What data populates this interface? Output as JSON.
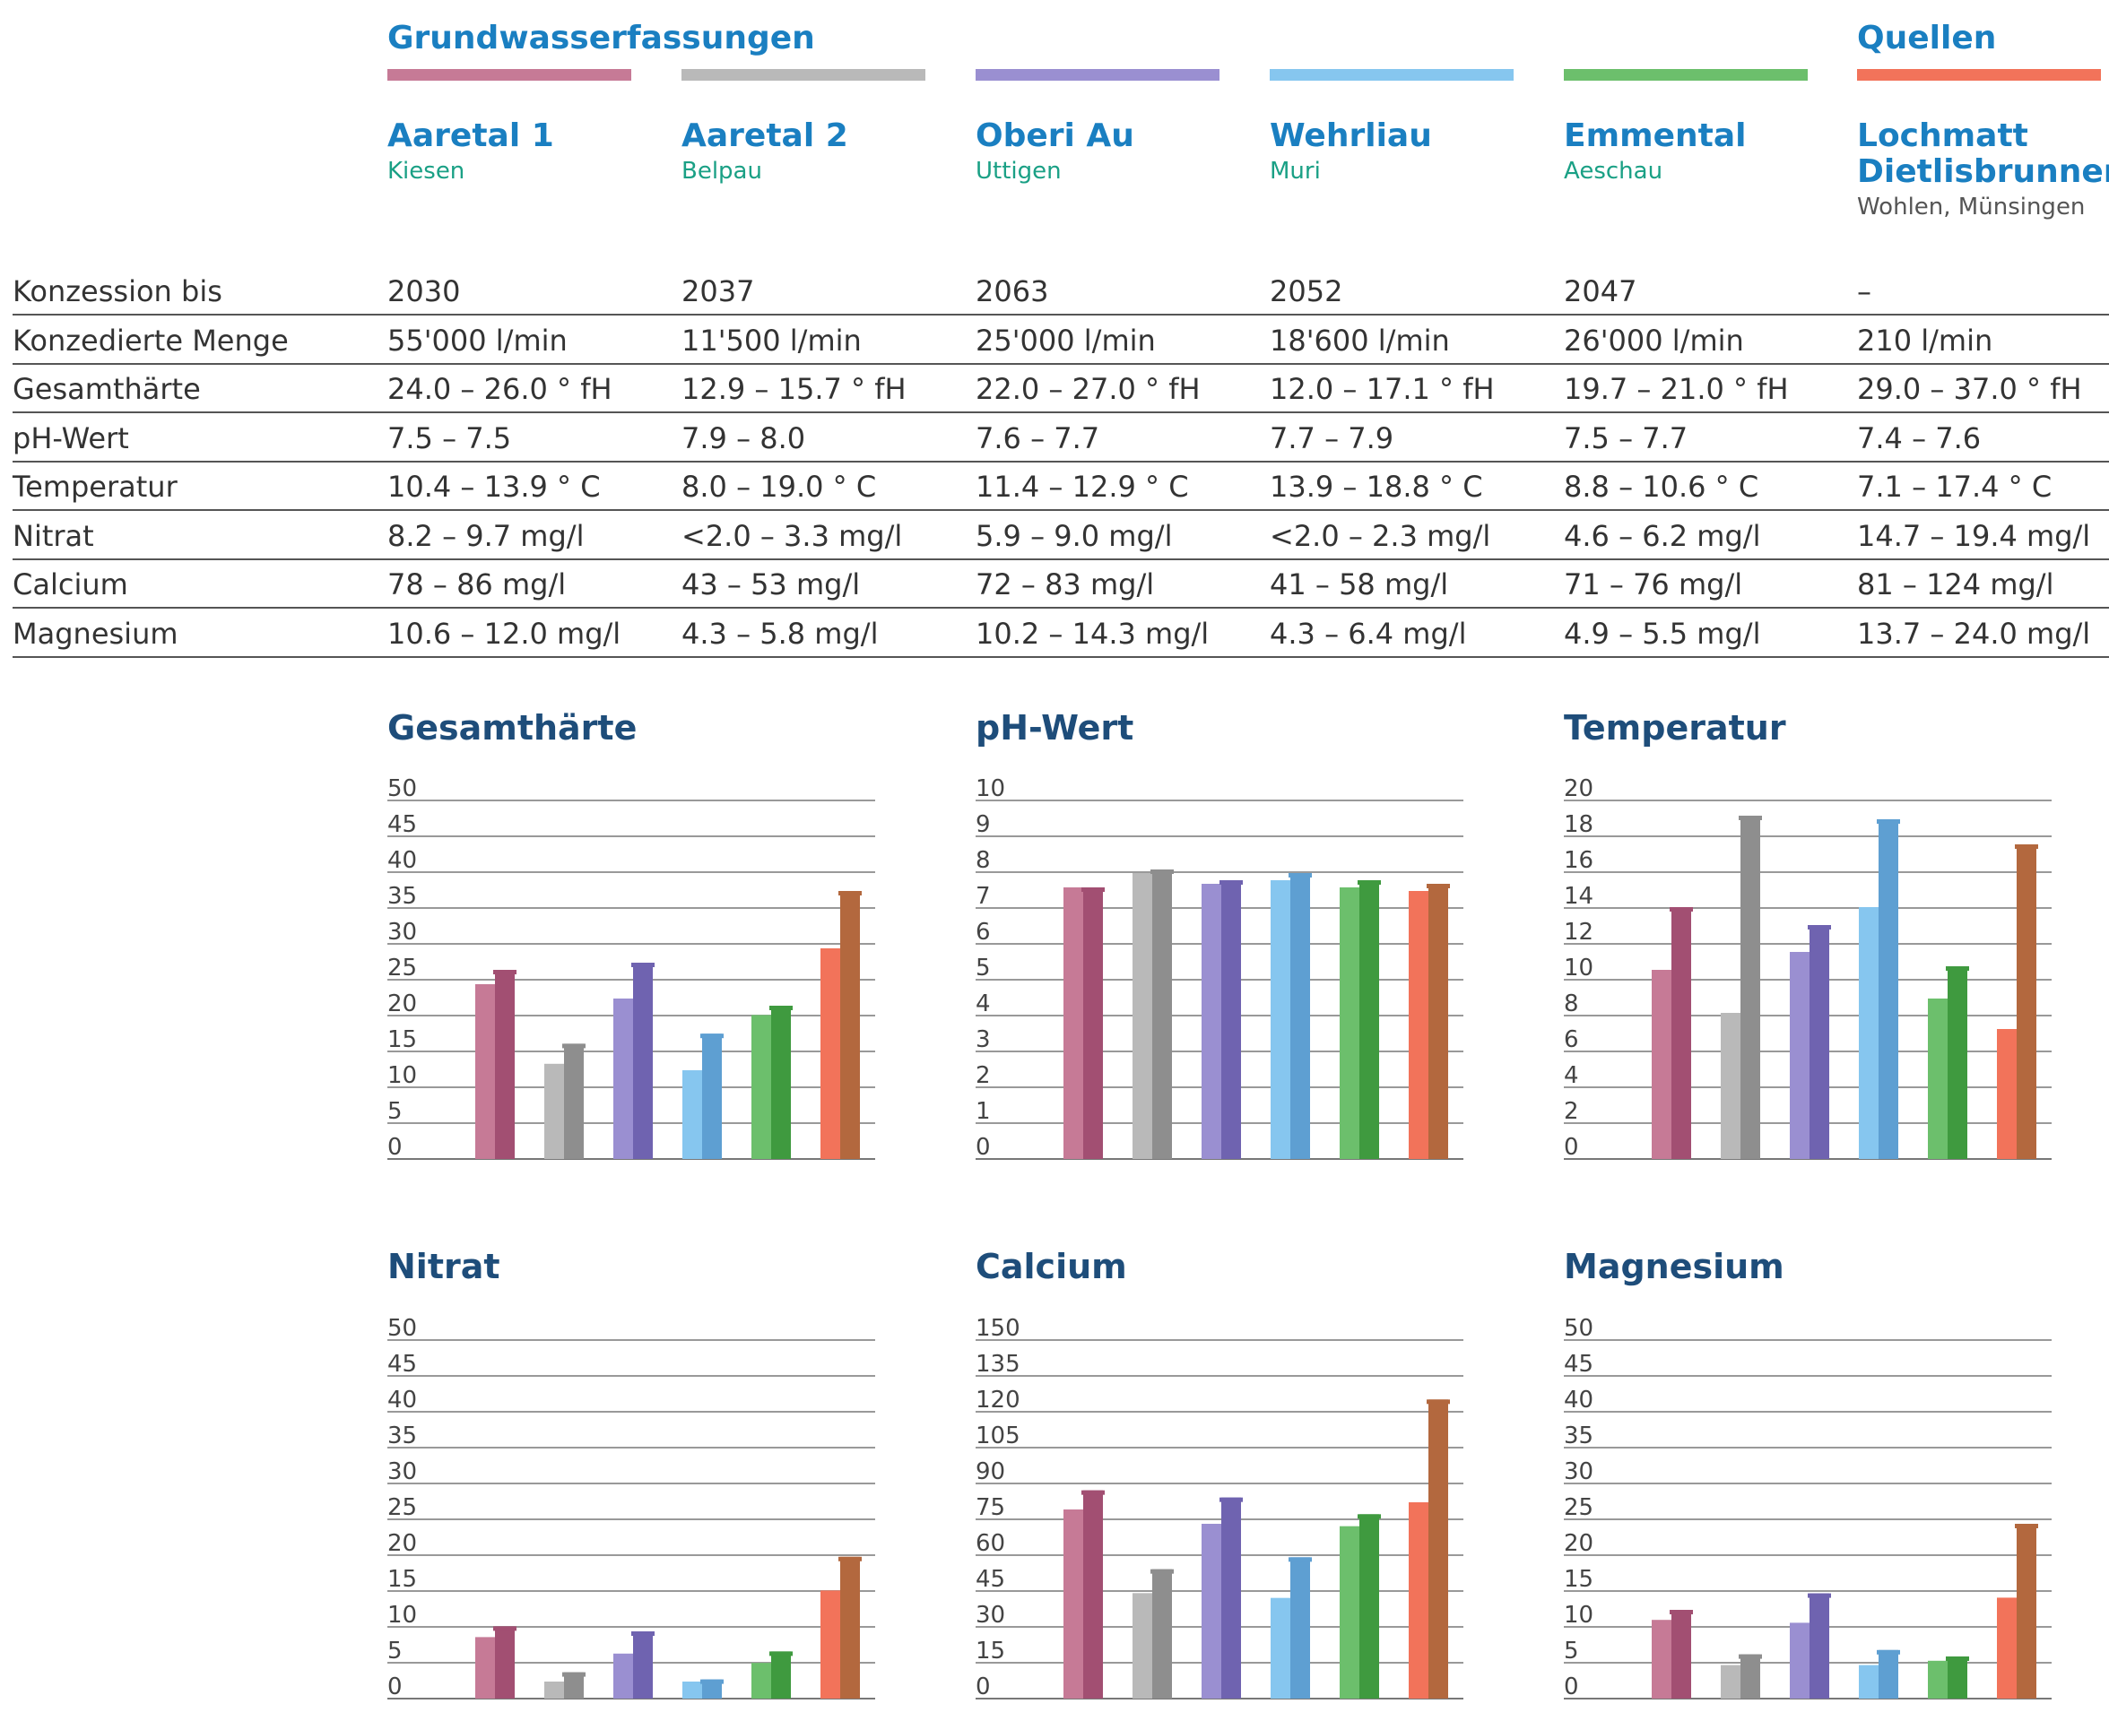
{
  "groups": {
    "groundwater": "Grundwasserfassungen",
    "springs": "Quellen"
  },
  "colors": {
    "aaretal1": "#c67a96",
    "aaretal2": "#b9b9b9",
    "oberi_au": "#9a8fd1",
    "wehrliau": "#86c6ef",
    "emmental": "#6cbf6c",
    "lochmatt": "#f2735a"
  },
  "sources": [
    {
      "name": "Aaretal 1",
      "location": "Kiesen",
      "color": "#c67a96"
    },
    {
      "name": "Aaretal 2",
      "location": "Belpau",
      "color": "#b9b9b9"
    },
    {
      "name": "Oberi Au",
      "location": "Uttigen",
      "color": "#9a8fd1"
    },
    {
      "name": "Wehrliau",
      "location": "Muri",
      "color": "#86c6ef"
    },
    {
      "name": "Emmental",
      "location": "Aeschau",
      "color": "#6cbf6c"
    },
    {
      "name": "Lochmatt",
      "name2": "Dietlisbrunnen",
      "location": "Wohlen, Münsingen",
      "color": "#f2735a"
    }
  ],
  "table": {
    "rows": [
      {
        "label": "Konzession bis",
        "values": [
          "2030",
          "2037",
          "2063",
          "2052",
          "2047",
          "–"
        ]
      },
      {
        "label": "Konzedierte Menge",
        "values": [
          "55'000 l/min",
          "11'500 l/min",
          "25'000 l/min",
          "18'600 l/min",
          "26'000 l/min",
          "210 l/min"
        ]
      },
      {
        "label": "Gesamthärte",
        "values": [
          "24.0 – 26.0 ° fH",
          "12.9 – 15.7 ° fH",
          "22.0 – 27.0 ° fH",
          "12.0 – 17.1 ° fH",
          "19.7 – 21.0 ° fH",
          "29.0 – 37.0 ° fH"
        ]
      },
      {
        "label": "pH-Wert",
        "values": [
          "7.5 – 7.5",
          "7.9 – 8.0",
          "7.6 – 7.7",
          "7.7 – 7.9",
          "7.5 – 7.7",
          "7.4 – 7.6"
        ]
      },
      {
        "label": "Temperatur",
        "values": [
          "10.4 – 13.9 ° C",
          "8.0 – 19.0 ° C",
          "11.4 – 12.9 ° C",
          "13.9 – 18.8 ° C",
          "8.8 – 10.6 ° C",
          "7.1 – 17.4 ° C"
        ]
      },
      {
        "label": "Nitrat",
        "values": [
          "8.2 – 9.7 mg/l",
          "<2.0 – 3.3 mg/l",
          "5.9 – 9.0 mg/l",
          "<2.0 – 2.3 mg/l",
          "4.6 – 6.2 mg/l",
          "14.7 – 19.4 mg/l"
        ]
      },
      {
        "label": "Calcium",
        "values": [
          "78 – 86 mg/l",
          "43 – 53 mg/l",
          "72 – 83 mg/l",
          "41 – 58 mg/l",
          "71 – 76 mg/l",
          "81 – 124 mg/l"
        ]
      },
      {
        "label": "Magnesium",
        "values": [
          "10.6 – 12.0 mg/l",
          "4.3 – 5.8 mg/l",
          "10.2 – 14.3 mg/l",
          "4.3 – 6.4 mg/l",
          "4.9 – 5.5 mg/l",
          "13.7 – 24.0 mg/l"
        ]
      }
    ]
  },
  "chart_data": [
    {
      "type": "bar",
      "title": "Gesamthärte",
      "ylim": [
        0,
        50
      ],
      "ticks": [
        "0",
        "5",
        "10",
        "15",
        "20",
        "25",
        "30",
        "35",
        "40",
        "45",
        "50"
      ],
      "categories": [
        "Aaretal 1",
        "Aaretal 2",
        "Oberi Au",
        "Wehrliau",
        "Emmental",
        "Lochmatt Dietlisbrunnen"
      ],
      "series": [
        {
          "values": [
            24.0,
            12.9,
            22.0,
            12.0,
            19.7,
            29.0
          ]
        },
        {
          "values": [
            26.0,
            15.7,
            27.0,
            17.1,
            21.0,
            37.0
          ]
        }
      ]
    },
    {
      "type": "bar",
      "title": "pH-Wert",
      "ylim": [
        0,
        10
      ],
      "ticks": [
        "0",
        "1",
        "2",
        "3",
        "4",
        "5",
        "6",
        "7",
        "8",
        "9",
        "10"
      ],
      "categories": [
        "Aaretal 1",
        "Aaretal 2",
        "Oberi Au",
        "Wehrliau",
        "Emmental",
        "Lochmatt Dietlisbrunnen"
      ],
      "series": [
        {
          "values": [
            7.5,
            7.9,
            7.6,
            7.7,
            7.5,
            7.4
          ]
        },
        {
          "values": [
            7.5,
            8.0,
            7.7,
            7.9,
            7.7,
            7.6
          ]
        }
      ]
    },
    {
      "type": "bar",
      "title": "Temperatur",
      "ylim": [
        0,
        20
      ],
      "ticks": [
        "0",
        "2",
        "4",
        "6",
        "8",
        "10",
        "12",
        "14",
        "16",
        "18",
        "20"
      ],
      "categories": [
        "Aaretal 1",
        "Aaretal 2",
        "Oberi Au",
        "Wehrliau",
        "Emmental",
        "Lochmatt Dietlisbrunnen"
      ],
      "series": [
        {
          "values": [
            10.4,
            8.0,
            11.4,
            13.9,
            8.8,
            7.1
          ]
        },
        {
          "values": [
            13.9,
            19.0,
            12.9,
            18.8,
            10.6,
            17.4
          ]
        }
      ]
    },
    {
      "type": "bar",
      "title": "Nitrat",
      "ylim": [
        0,
        50
      ],
      "ticks": [
        "0",
        "5",
        "10",
        "15",
        "20",
        "25",
        "30",
        "35",
        "40",
        "45",
        "50"
      ],
      "categories": [
        "Aaretal 1",
        "Aaretal 2",
        "Oberi Au",
        "Wehrliau",
        "Emmental",
        "Lochmatt Dietlisbrunnen"
      ],
      "series": [
        {
          "values": [
            8.2,
            2.0,
            5.9,
            2.0,
            4.6,
            14.7
          ]
        },
        {
          "values": [
            9.7,
            3.3,
            9.0,
            2.3,
            6.2,
            19.4
          ]
        }
      ]
    },
    {
      "type": "bar",
      "title": "Calcium",
      "ylim": [
        0,
        150
      ],
      "ticks": [
        "0",
        "15",
        "30",
        "45",
        "60",
        "75",
        "90",
        "105",
        "120",
        "135",
        "150"
      ],
      "categories": [
        "Aaretal 1",
        "Aaretal 2",
        "Oberi Au",
        "Wehrliau",
        "Emmental",
        "Lochmatt Dietlisbrunnen"
      ],
      "series": [
        {
          "values": [
            78,
            43,
            72,
            41,
            71,
            81
          ]
        },
        {
          "values": [
            86,
            53,
            83,
            58,
            76,
            124
          ]
        }
      ]
    },
    {
      "type": "bar",
      "title": "Magnesium",
      "ylim": [
        0,
        50
      ],
      "ticks": [
        "0",
        "5",
        "10",
        "15",
        "20",
        "25",
        "30",
        "35",
        "40",
        "45",
        "50"
      ],
      "categories": [
        "Aaretal 1",
        "Aaretal 2",
        "Oberi Au",
        "Wehrliau",
        "Emmental",
        "Lochmatt Dietlisbrunnen"
      ],
      "series": [
        {
          "values": [
            10.6,
            4.3,
            10.2,
            4.3,
            4.9,
            13.7
          ]
        },
        {
          "values": [
            12.0,
            5.8,
            14.3,
            6.4,
            5.5,
            24.0
          ]
        }
      ]
    }
  ]
}
